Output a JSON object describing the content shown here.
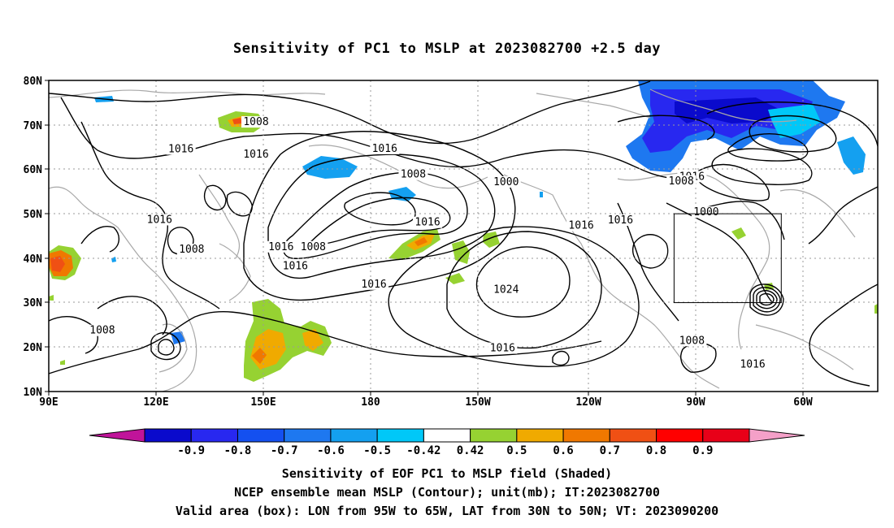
{
  "title": "Sensitivity of PC1 to MSLP at 2023082700 +2.5 day",
  "lat_labels": [
    "80N",
    "70N",
    "60N",
    "50N",
    "40N",
    "30N",
    "20N",
    "10N"
  ],
  "lon_labels": [
    "90E",
    "120E",
    "150E",
    "180",
    "150W",
    "120W",
    "90W",
    "60W"
  ],
  "contour_labels": [
    {
      "text": "1008",
      "lon": 148,
      "lat": 70.3
    },
    {
      "text": "1016",
      "lon": 127,
      "lat": 64.2
    },
    {
      "text": "1016",
      "lon": 184,
      "lat": 64.3
    },
    {
      "text": "1016",
      "lon": 148,
      "lat": 63.0
    },
    {
      "text": "1008",
      "lon": 192,
      "lat": 58.5
    },
    {
      "text": "1000",
      "lon": 218,
      "lat": 56.8
    },
    {
      "text": "1016",
      "lon": 270,
      "lat": 58.0
    },
    {
      "text": "1000",
      "lon": 274,
      "lat": 50.0
    },
    {
      "text": "1008",
      "lon": 267,
      "lat": 57.0
    },
    {
      "text": "1016",
      "lon": 121,
      "lat": 48.3
    },
    {
      "text": "1016",
      "lon": 196,
      "lat": 47.7
    },
    {
      "text": "1016",
      "lon": 239,
      "lat": 47.0
    },
    {
      "text": "1016",
      "lon": 250,
      "lat": 48.2
    },
    {
      "text": "1008",
      "lon": 130,
      "lat": 41.6
    },
    {
      "text": "1016",
      "lon": 155,
      "lat": 42.2
    },
    {
      "text": "1008",
      "lon": 164,
      "lat": 42.2
    },
    {
      "text": "1016",
      "lon": 159,
      "lat": 37.9
    },
    {
      "text": "1016",
      "lon": 181,
      "lat": 33.8
    },
    {
      "text": "1024",
      "lon": 218,
      "lat": 32.6
    },
    {
      "text": "1008",
      "lon": 105,
      "lat": 23.4
    },
    {
      "text": "1016",
      "lon": 217,
      "lat": 19.4
    },
    {
      "text": "1008",
      "lon": 270,
      "lat": 21.1
    },
    {
      "text": "1016",
      "lon": 287,
      "lat": 15.8
    }
  ],
  "colorbar": {
    "labels": [
      "-0.9",
      "-0.8",
      "-0.7",
      "-0.6",
      "-0.5",
      "-0.42",
      "0.42",
      "0.5",
      "0.6",
      "0.7",
      "0.8",
      "0.9"
    ],
    "colors": [
      "#0a0acc",
      "#2828f0",
      "#1450f0",
      "#1e78f0",
      "#14a0f0",
      "#00c8f8",
      "#ffffff",
      "#96d232",
      "#f0aa00",
      "#f07800",
      "#f05014",
      "#ff0000",
      "#e80018"
    ],
    "end_low": "#c0149a",
    "end_high": "#f4a0c8"
  },
  "caption": {
    "line1": "Sensitivity of EOF PC1 to MSLP field (Shaded)",
    "line2": "NCEP ensemble mean MSLP (Contour); unit(mb); IT:2023082700",
    "line3": "Valid area (box): LON from 95W to 65W, LAT from 30N to 50N; VT: 2023090200"
  },
  "valid_box": {
    "lon_min": 265,
    "lon_max": 295,
    "lat_min": 30,
    "lat_max": 50
  },
  "map_extent": {
    "lon_min": 90,
    "lon_max": 322,
    "lat_min": 10,
    "lat_max": 80
  }
}
